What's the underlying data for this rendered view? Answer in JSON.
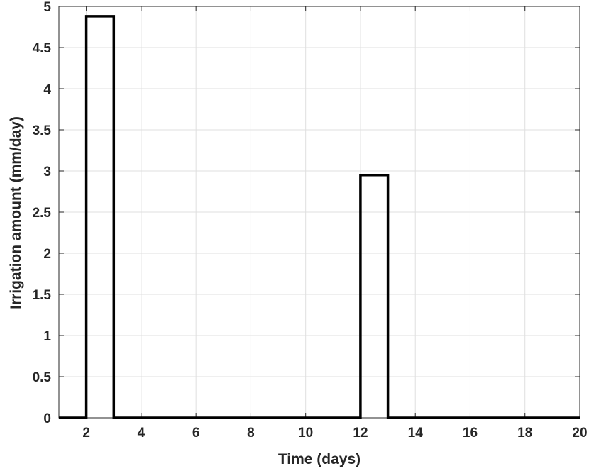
{
  "chart_data": {
    "type": "line",
    "title": "",
    "xlabel": "Time (days)",
    "ylabel": "Irrigation amount (mm/day)",
    "xlim": [
      1,
      20
    ],
    "ylim": [
      0,
      5
    ],
    "xticks": [
      2,
      4,
      6,
      8,
      10,
      12,
      14,
      16,
      18,
      20
    ],
    "yticks": [
      0,
      0.5,
      1,
      1.5,
      2,
      2.5,
      3,
      3.5,
      4,
      4.5,
      5
    ],
    "xtick_labels": [
      "2",
      "4",
      "6",
      "8",
      "10",
      "12",
      "14",
      "16",
      "18",
      "20"
    ],
    "ytick_labels": [
      "0",
      "0.5",
      "1",
      "1.5",
      "2",
      "2.5",
      "3",
      "3.5",
      "4",
      "4.5",
      "5"
    ],
    "grid": true,
    "series": [
      {
        "style": "step",
        "color": "#000000",
        "x": [
          1,
          2,
          2,
          3,
          3,
          12,
          12,
          13,
          13,
          20
        ],
        "y": [
          0,
          0,
          4.88,
          4.88,
          0,
          0,
          2.95,
          2.95,
          0,
          0
        ]
      }
    ]
  }
}
